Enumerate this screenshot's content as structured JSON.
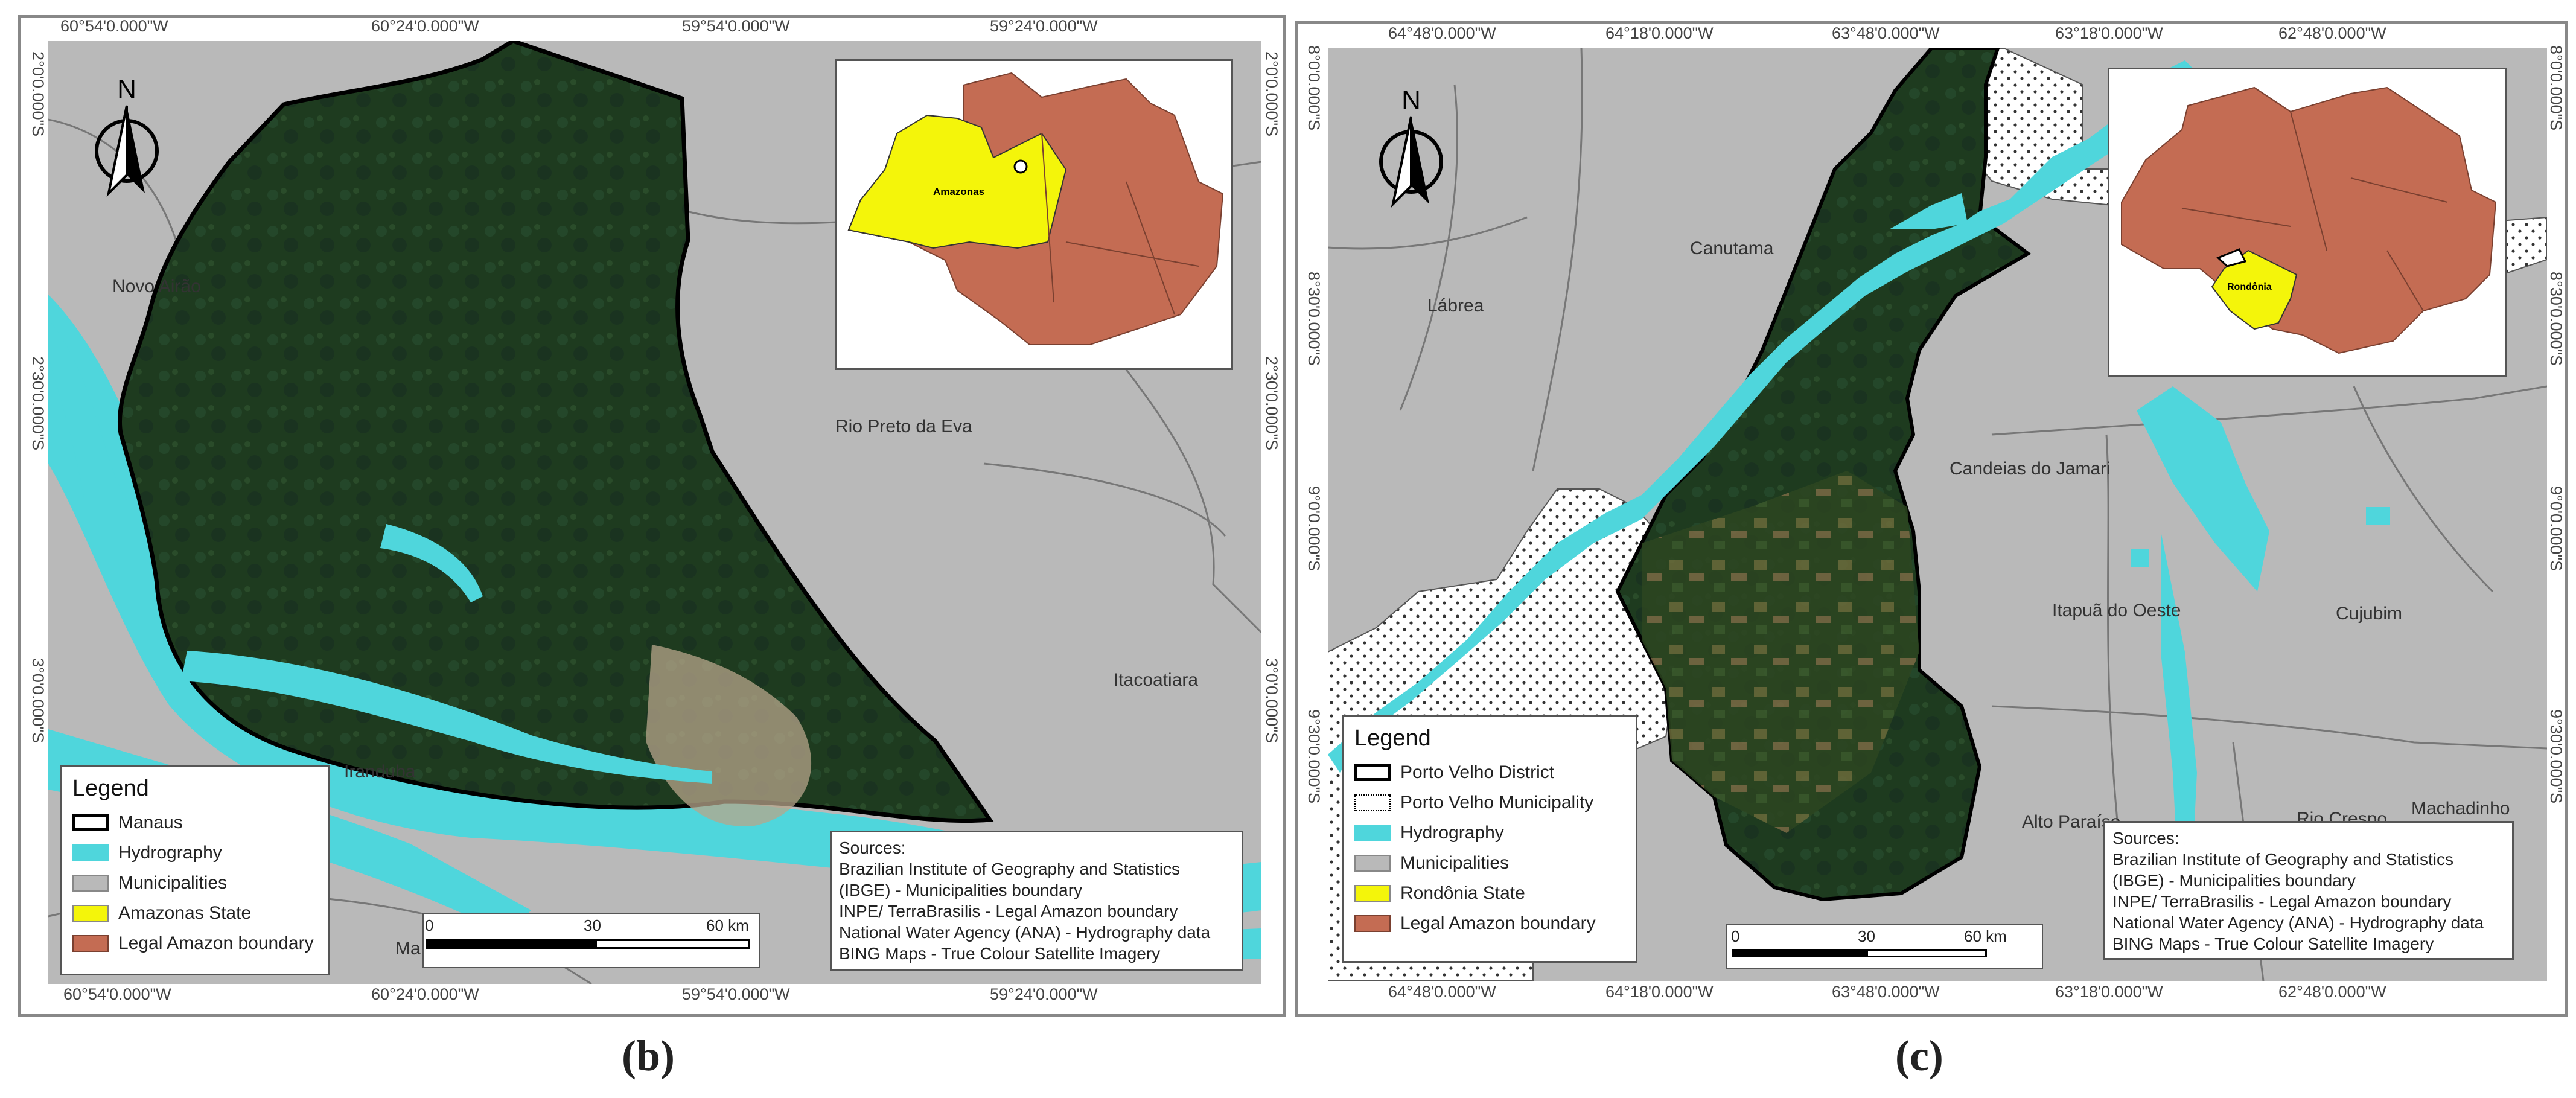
{
  "panel_b": {
    "caption": "(b)",
    "north_label": "N",
    "top_ticks": [
      "60°54'0.000\"W",
      "60°24'0.000\"W",
      "59°54'0.000\"W",
      "59°24'0.000\"W"
    ],
    "bottom_ticks": [
      "60°54'0.000\"W",
      "60°24'0.000\"W",
      "59°54'0.000\"W",
      "59°24'0.000\"W"
    ],
    "left_ticks": [
      "2°0'0.000\"S",
      "2°30'0.000\"S",
      "3°0'0.000\"S"
    ],
    "right_ticks": [
      "2°0'0.000\"S",
      "2°30'0.000\"S",
      "3°0'0.000\"S"
    ],
    "places": {
      "novo_airao": "Novo Airão",
      "rio_preto": "Rio Preto da Eva",
      "itacoatiara": "Itacoatiara",
      "iranduba": "Iranduba",
      "ma": "Ma"
    },
    "inset_label": "Amazonas",
    "legend": {
      "title": "Legend",
      "items": [
        "Manaus",
        "Hydrography",
        "Municipalities",
        "Amazonas State",
        "Legal Amazon boundary"
      ]
    },
    "sources": [
      "Sources:",
      "Brazilian Institute of Geography and Statistics",
      "(IBGE) - Municipalities boundary",
      "INPE/ TerraBrasilis - Legal Amazon boundary",
      "National Water Agency (ANA) - Hydrography data",
      "BING Maps - True Colour Satellite Imagery"
    ],
    "scale": {
      "t0": "0",
      "t1": "30",
      "t2": "60 km"
    }
  },
  "panel_c": {
    "caption": "(c)",
    "north_label": "N",
    "top_ticks": [
      "64°48'0.000\"W",
      "64°18'0.000\"W",
      "63°48'0.000\"W",
      "63°18'0.000\"W",
      "62°48'0.000\"W"
    ],
    "bottom_ticks": [
      "64°48'0.000\"W",
      "64°18'0.000\"W",
      "63°48'0.000\"W",
      "63°18'0.000\"W",
      "62°48'0.000\"W"
    ],
    "left_ticks": [
      "8°0'0.000\"S",
      "8°30'0.000\"S",
      "9°0'0.000\"S",
      "9°30'0.000\"S"
    ],
    "right_ticks": [
      "8°0'0.000\"S",
      "8°30'0.000\"S",
      "9°0'0.000\"S",
      "9°30'0.000\"S"
    ],
    "places": {
      "canutama": "Canutama",
      "labrea": "Lábrea",
      "candeias": "Candeias do Jamari",
      "itapua": "Itapuã do Oeste",
      "cujubim": "Cujubim",
      "alto_paraiso": "Alto Paraíso",
      "rio_crespo": "Rio Crespo",
      "machadinho": "Machadinho"
    },
    "inset_label": "Rondônia",
    "legend": {
      "title": "Legend",
      "items": [
        "Porto Velho District",
        "Porto Velho Municipality",
        "Hydrography",
        "Municipalities",
        "Rondônia State",
        "Legal Amazon boundary"
      ]
    },
    "sources": [
      "Sources:",
      "Brazilian Institute of Geography and Statistics",
      "(IBGE) - Municipalities boundary",
      "INPE/ TerraBrasilis - Legal Amazon boundary",
      "National Water Agency (ANA) - Hydrography data",
      "BING Maps - True Colour Satellite Imagery"
    ],
    "scale": {
      "t0": "0",
      "t1": "30",
      "t2": "60 km"
    }
  },
  "colors": {
    "municipality_gray": "#b9b9b9",
    "hydrography": "#4fd6dc",
    "forest": "#1f3d1f",
    "amazonas_yellow": "#f4f50a",
    "legal_amazon": "#c46c53",
    "boundary": "#000000"
  }
}
